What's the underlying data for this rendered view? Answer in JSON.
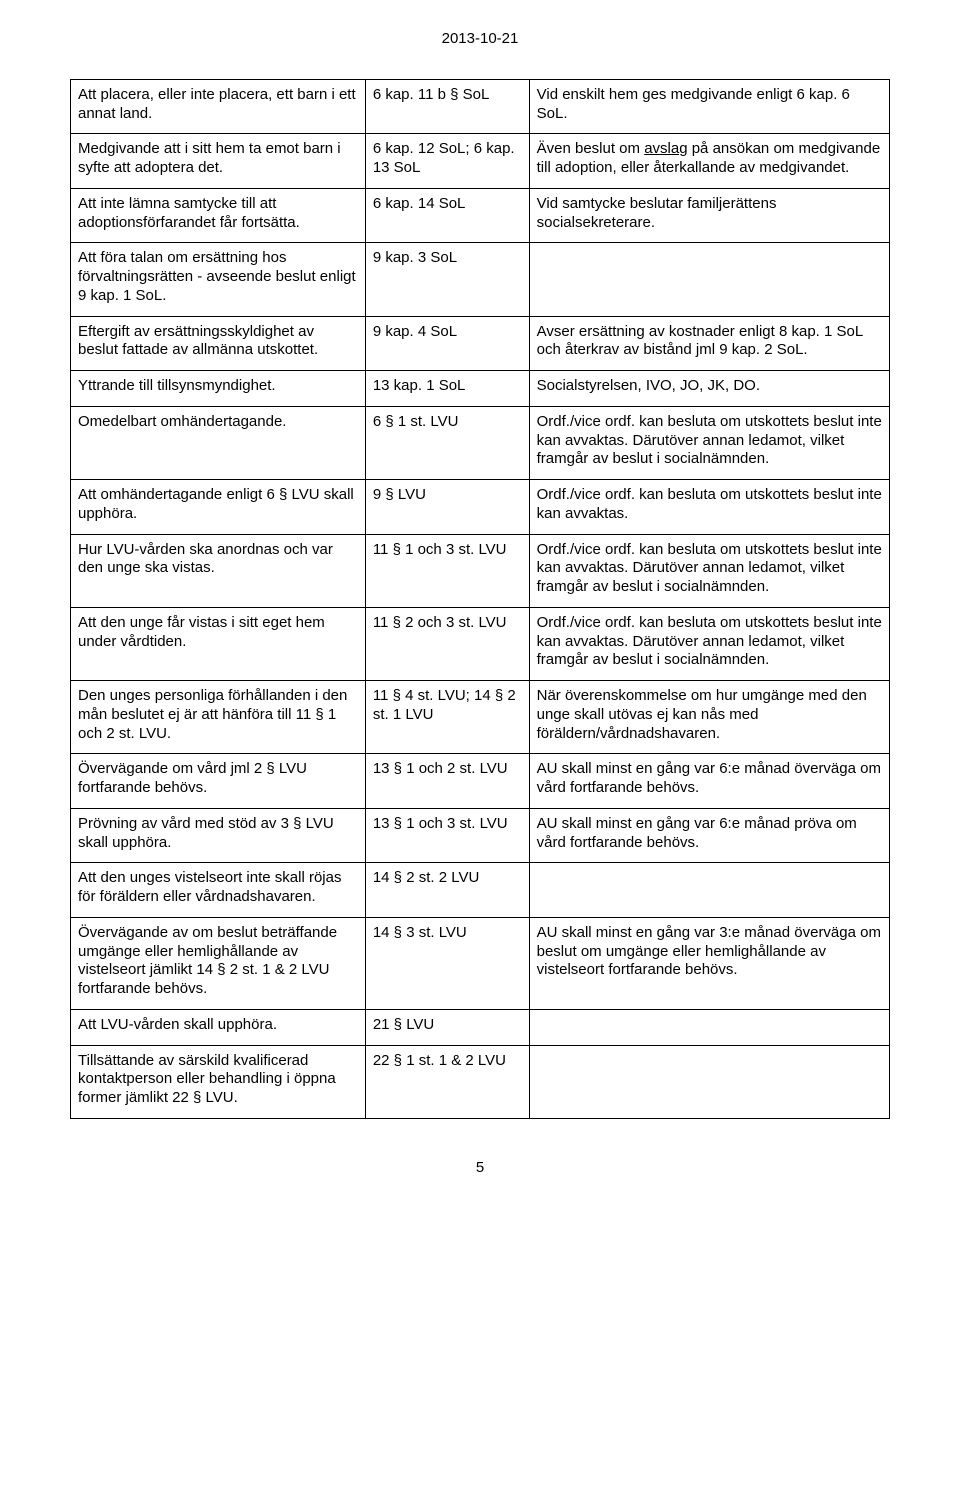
{
  "date": "2013-10-21",
  "page_number": "5",
  "rows": [
    {
      "c0": "Att placera, eller inte placera, ett barn i ett annat land.",
      "c1": "6 kap. 11 b § SoL",
      "c2": "Vid enskilt hem ges medgivande enligt 6 kap. 6 SoL."
    },
    {
      "c0": "Medgivande att i sitt hem ta emot barn i syfte att adoptera det.",
      "c1": "6 kap. 12 SoL; 6 kap. 13 SoL",
      "c2_pre": "Även beslut om ",
      "c2_u": "avslag",
      "c2_post": " på ansökan om medgivande till adoption, eller återkallande av medgivandet."
    },
    {
      "c0": "Att inte lämna samtycke till att adoptionsförfarandet får fortsätta.",
      "c1": "6 kap. 14 SoL",
      "c2": "Vid samtycke beslutar familjerättens socialsekreterare."
    },
    {
      "c0": "Att föra talan om ersättning hos förvaltningsrätten - avseende beslut enligt 9 kap. 1 SoL.",
      "c1": "9 kap. 3 SoL",
      "c2": ""
    },
    {
      "c0": "Eftergift av ersättningsskyldighet av beslut fattade av allmänna utskottet.",
      "c1": "9 kap. 4 SoL",
      "c2": "Avser ersättning av kostnader enligt 8 kap. 1 SoL och återkrav av bistånd jml 9 kap. 2 SoL."
    },
    {
      "c0": "Yttrande till tillsynsmyndighet.",
      "c1": "13 kap. 1 SoL",
      "c2": "Socialstyrelsen, IVO, JO, JK, DO."
    },
    {
      "c0": "Omedelbart omhändertagande.",
      "c1": "6 § 1 st. LVU",
      "c2": "Ordf./vice ordf. kan besluta om utskottets beslut inte kan avvaktas. Därutöver annan ledamot, vilket framgår av beslut i socialnämnden."
    },
    {
      "c0": "Att omhändertagande enligt 6 § LVU skall upphöra.",
      "c1": "9 § LVU",
      "c2": "Ordf./vice ordf. kan besluta om utskottets beslut inte kan avvaktas."
    },
    {
      "c0": "Hur LVU-vården ska anordnas och var den unge ska vistas.",
      "c1": "11 § 1 och 3 st. LVU",
      "c2": "Ordf./vice ordf. kan besluta om utskottets beslut inte kan avvaktas. Därutöver annan ledamot, vilket framgår av beslut i socialnämnden."
    },
    {
      "c0": "Att den unge får vistas i sitt eget hem under vårdtiden.",
      "c1": "11 § 2 och 3 st. LVU",
      "c2": "Ordf./vice ordf. kan besluta om utskottets beslut inte kan avvaktas. Därutöver annan ledamot, vilket framgår av beslut i socialnämnden."
    },
    {
      "c0": "Den unges personliga förhållanden i den mån beslutet ej är att hänföra till 11 § 1 och 2 st. LVU.",
      "c1": "11 § 4 st. LVU; 14 § 2 st. 1 LVU",
      "c2": "När överenskommelse om hur umgänge med den unge skall utövas ej kan nås med föräldern/vårdnadshavaren."
    },
    {
      "c0": "Övervägande om vård jml 2 § LVU fortfarande behövs.",
      "c1": "13 § 1 och 2 st. LVU",
      "c2": "AU skall minst en gång var 6:e månad överväga om vård fortfarande behövs."
    },
    {
      "c0": "Prövning av vård med stöd av 3 § LVU skall upphöra.",
      "c1": "13 § 1 och 3 st. LVU",
      "c2": "AU skall minst en gång var 6:e månad pröva om vård fortfarande behövs."
    },
    {
      "c0": "Att den unges vistelseort inte skall röjas för föräldern eller vårdnadshavaren.",
      "c1": "14 § 2 st. 2 LVU",
      "c2": ""
    },
    {
      "c0": "Övervägande av om beslut beträffande umgänge eller hemlighållande av vistelseort jämlikt 14 § 2 st. 1 & 2 LVU fortfarande behövs.",
      "c1": "14 § 3 st. LVU",
      "c2": "AU skall minst en gång var 3:e månad överväga om beslut om umgänge eller hemlighållande av vistelseort fortfarande behövs."
    },
    {
      "c0": "Att LVU-vården skall upphöra.",
      "c1": "21 § LVU",
      "c2": ""
    },
    {
      "c0": "Tillsättande av särskild kvalificerad kontaktperson eller behandling i öppna former jämlikt 22 § LVU.",
      "c1": "22 § 1 st. 1 & 2 LVU",
      "c2": ""
    }
  ]
}
